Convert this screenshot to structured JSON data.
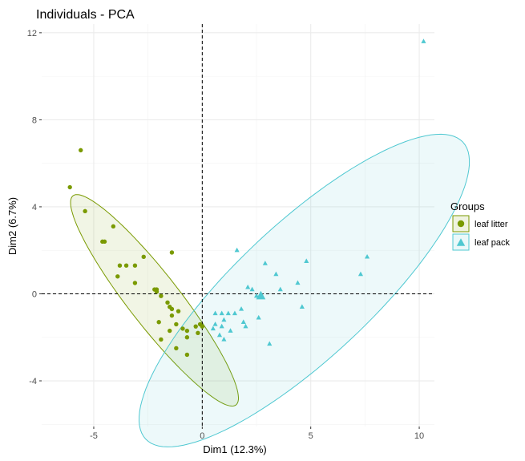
{
  "chart_data": {
    "type": "scatter",
    "title": "Individuals - PCA",
    "xlabel": "Dim1 (12.3%)",
    "ylabel": "Dim2 (6.7%)",
    "xlim": [
      -7.4,
      10.7
    ],
    "ylim": [
      -6.1,
      12.4
    ],
    "xticks": [
      -5,
      0,
      5,
      10
    ],
    "xtick_labels": [
      "-5",
      "0",
      "5",
      "10"
    ],
    "yticks": [
      -4,
      0,
      4,
      8,
      12
    ],
    "ytick_labels": [
      "-4",
      "0",
      "4",
      "8",
      "12"
    ],
    "grid": true,
    "legend": {
      "title": "Groups",
      "placement": "right"
    },
    "series": [
      {
        "name": "leaf litter",
        "color": "#7A9A01",
        "marker": "circle",
        "points": [
          [
            -5.6,
            6.6
          ],
          [
            -6.1,
            4.9
          ],
          [
            -5.4,
            3.8
          ],
          [
            -4.6,
            2.4
          ],
          [
            -4.5,
            2.4
          ],
          [
            -4.1,
            3.1
          ],
          [
            -3.8,
            1.3
          ],
          [
            -3.5,
            1.3
          ],
          [
            -3.9,
            0.8
          ],
          [
            -3.1,
            1.3
          ],
          [
            -2.7,
            1.7
          ],
          [
            -3.1,
            0.5
          ],
          [
            -1.4,
            1.9
          ],
          [
            -2.1,
            0.2
          ],
          [
            -2.2,
            0.2
          ],
          [
            -2.1,
            0.1
          ],
          [
            -1.9,
            -0.1
          ],
          [
            -1.6,
            -0.4
          ],
          [
            -1.5,
            -0.6
          ],
          [
            -1.4,
            -0.7
          ],
          [
            -1.1,
            -0.8
          ],
          [
            -1.4,
            -1.0
          ],
          [
            -2.0,
            -1.3
          ],
          [
            -1.5,
            -1.7
          ],
          [
            -1.2,
            -1.4
          ],
          [
            -0.9,
            -1.6
          ],
          [
            -0.3,
            -1.5
          ],
          [
            -0.1,
            -1.4
          ],
          [
            0.0,
            -1.5
          ],
          [
            -0.2,
            -1.8
          ],
          [
            -0.7,
            -1.7
          ],
          [
            -0.7,
            -2.0
          ],
          [
            -1.9,
            -2.1
          ],
          [
            -1.2,
            -2.5
          ],
          [
            -0.7,
            -2.8
          ]
        ]
      },
      {
        "name": "leaf pack",
        "color": "#4FC8D1",
        "marker": "triangle",
        "points": [
          [
            10.2,
            11.6
          ],
          [
            1.6,
            2.0
          ],
          [
            2.9,
            1.4
          ],
          [
            4.8,
            1.5
          ],
          [
            3.4,
            0.9
          ],
          [
            7.6,
            1.7
          ],
          [
            7.3,
            0.9
          ],
          [
            4.4,
            0.5
          ],
          [
            2.1,
            0.3
          ],
          [
            2.3,
            0.2
          ],
          [
            3.6,
            0.2
          ],
          [
            2.5,
            -0.1
          ],
          [
            1.8,
            -0.7
          ],
          [
            0.6,
            -0.9
          ],
          [
            0.9,
            -0.9
          ],
          [
            1.2,
            -0.9
          ],
          [
            1.5,
            -0.9
          ],
          [
            1.0,
            -1.2
          ],
          [
            2.6,
            -1.1
          ],
          [
            1.9,
            -1.3
          ],
          [
            2.0,
            -1.5
          ],
          [
            0.6,
            -1.4
          ],
          [
            0.9,
            -1.5
          ],
          [
            0.5,
            -1.6
          ],
          [
            1.3,
            -1.7
          ],
          [
            0.8,
            -1.9
          ],
          [
            1.0,
            -2.1
          ],
          [
            4.6,
            -0.6
          ],
          [
            3.1,
            -2.3
          ]
        ]
      }
    ],
    "centroids": [
      {
        "name": "leaf pack",
        "x": 2.7,
        "y": -0.1
      }
    ],
    "ellipses": [
      {
        "name": "leaf litter",
        "cx": -2.2,
        "cy": -0.3,
        "rx": 6.1,
        "ry": 1.18,
        "angle_deg": -52
      },
      {
        "name": "leaf pack",
        "cx": 4.7,
        "cy": 0.15,
        "rx": 10.0,
        "ry": 3.1,
        "angle_deg": 43
      }
    ]
  }
}
